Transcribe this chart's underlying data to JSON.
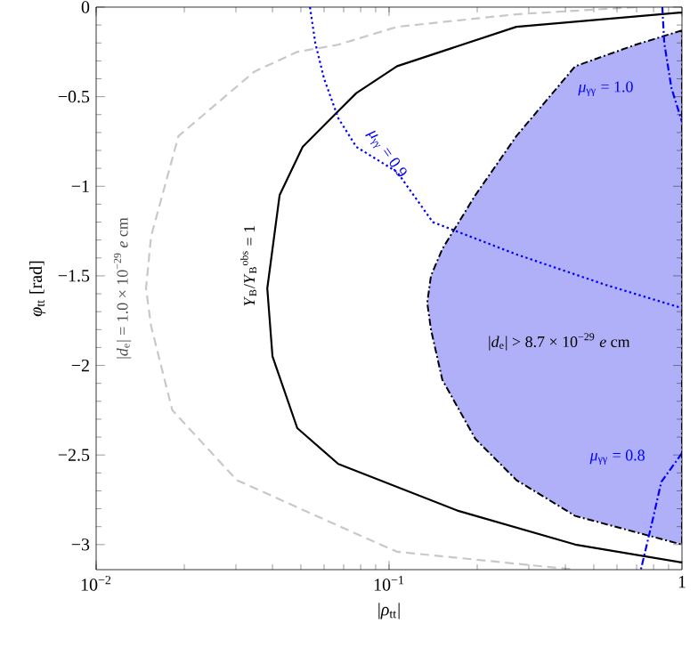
{
  "chart_data": {
    "type": "line",
    "xlabel": "|*ρ*$_{tt}$|",
    "ylabel": "*φ*$_{tt}$ [rad]",
    "log": "x",
    "xlim": [
      0.01,
      1
    ],
    "ylim": [
      -3.14,
      0
    ],
    "xticks": [
      {
        "value": 0.01,
        "label": "10$^{−2}$"
      },
      {
        "value": 0.1,
        "label": "10$^{−1}$"
      },
      1
    ],
    "yticks": [
      {
        "value": -3,
        "label": "−3"
      },
      {
        "value": -2.5,
        "label": "−2.5"
      },
      {
        "value": -2,
        "label": "−2"
      },
      {
        "value": -1.5,
        "label": "−1.5"
      },
      {
        "value": -1,
        "label": "−1"
      },
      {
        "value": -0.5,
        "label": "−0.5"
      },
      0
    ],
    "series": [
      {
        "color": "#c8c8c8",
        "line_style": "dashed",
        "x": [
          0.695,
          0.272,
          0.1065,
          0.0671,
          0.0486,
          0.0347,
          0.0191,
          0.0154,
          0.0148,
          0.0154,
          0.0182,
          0.0302,
          0.0773,
          0.1065,
          0.432
        ],
        "values": [
          0,
          -0.04,
          -0.11,
          -0.21,
          -0.25,
          -0.36,
          -0.72,
          -1.28,
          -1.57,
          -1.78,
          -2.25,
          -2.64,
          -2.94,
          -3.04,
          -3.14
        ]
      },
      {
        "color": "#000000",
        "line_style": "solid",
        "x": [
          1,
          0.272,
          0.1065,
          0.0773,
          0.0671,
          0.0507,
          0.0423,
          0.0384,
          0.04,
          0.0486,
          0.0671,
          0.171,
          0.432,
          1
        ],
        "values": [
          -0.03,
          -0.11,
          -0.33,
          -0.48,
          -0.58,
          -0.78,
          -1.05,
          -1.57,
          -1.95,
          -2.35,
          -2.55,
          -2.81,
          -3.0,
          -3.1
        ]
      },
      {
        "type": "area",
        "color": "#b0b0f8",
        "line_style": "dashdot",
        "x": [
          1,
          0.695,
          0.432,
          0.272,
          0.197,
          0.152,
          0.139,
          0.135,
          0.139,
          0.152,
          0.197,
          0.272,
          0.432,
          1
        ],
        "values": [
          -0.13,
          -0.21,
          -0.33,
          -0.72,
          -1.05,
          -1.35,
          -1.5,
          -1.65,
          -1.8,
          -2.08,
          -2.41,
          -2.64,
          -2.84,
          -3.0
        ]
      },
      {
        "color": "#0000ff",
        "line_style": "dotted",
        "x": [
          0.0537,
          0.056,
          0.06,
          0.0671,
          0.0773,
          0.1065,
          0.141,
          0.272,
          0.548,
          1
        ],
        "values": [
          0,
          -0.2,
          -0.4,
          -0.62,
          -0.78,
          -0.92,
          -1.2,
          -1.38,
          -1.55,
          -1.68
        ]
      },
      {
        "color": "#0000ff",
        "line_style": "dashdot",
        "x": [
          0.857,
          0.87,
          0.92,
          1
        ],
        "values": [
          0,
          -0.2,
          -0.45,
          -0.64
        ]
      },
      {
        "color": "#0000ff",
        "line_style": "dashdot",
        "x": [
          1,
          0.85,
          0.8,
          0.724
        ],
        "values": [
          -2.49,
          -2.65,
          -2.84,
          -3.14
        ]
      }
    ],
    "annotations": [
      "|*d*$_{e}$| = 1.0 × 10$^{−29}$ *e* cm",
      "*Y*$_{B}$/*Y*$_{B}$$^{obs}$ = 1",
      {
        "text": "*μ*$_{γγ}$ = 0.9",
        "x": 0.098,
        "y": -0.82
      },
      "*μ*$_{γγ}$ = 1.0",
      "|*d*$_{e}$| > 8.7 × 10$^{−29}$ *e* cm",
      "*μ*$_{γγ}$ = 0.8"
    ]
  }
}
